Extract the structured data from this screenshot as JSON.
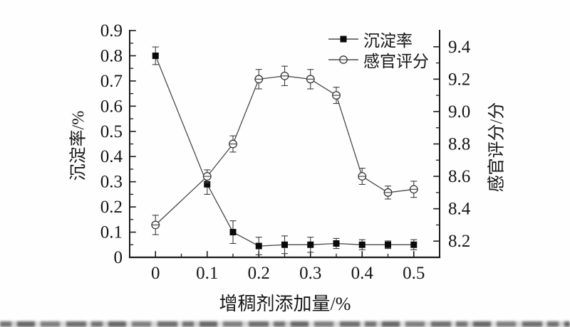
{
  "chart_data": {
    "type": "line",
    "title": "",
    "xlabel": "增稠剂添加量/%",
    "ylabel_left": "沉淀率/%",
    "ylabel_right": "感官评分/分",
    "legend_position": "top-right-inside",
    "grid": false,
    "x": [
      0,
      0.1,
      0.15,
      0.2,
      0.25,
      0.3,
      0.35,
      0.4,
      0.45,
      0.5
    ],
    "series": [
      {
        "name": "沉淀率",
        "axis": "left",
        "marker": "filled-square",
        "values": [
          0.8,
          0.29,
          0.1,
          0.045,
          0.05,
          0.05,
          0.055,
          0.05,
          0.05,
          0.05
        ],
        "errors": [
          0.035,
          0.04,
          0.045,
          0.035,
          0.035,
          0.03,
          0.02,
          0.02,
          0.015,
          0.02
        ]
      },
      {
        "name": "感官评分",
        "axis": "right",
        "marker": "open-circle",
        "values": [
          8.3,
          8.6,
          8.8,
          9.2,
          9.22,
          9.2,
          9.1,
          8.6,
          8.5,
          8.52
        ],
        "errors": [
          0.06,
          0.04,
          0.05,
          0.06,
          0.06,
          0.06,
          0.05,
          0.05,
          0.04,
          0.05
        ]
      }
    ],
    "x_range": [
      -0.05,
      0.55
    ],
    "x_ticks": [
      0,
      0.1,
      0.2,
      0.3,
      0.4,
      0.5
    ],
    "x_tick_labels": [
      "0",
      "0.1",
      "0.2",
      "0.3",
      "0.4",
      "0.5"
    ],
    "x_minor_ticks": [
      0.05,
      0.15,
      0.25,
      0.35,
      0.45
    ],
    "y_left_range": [
      0,
      0.9
    ],
    "y_left_ticks": [
      0,
      0.1,
      0.2,
      0.3,
      0.4,
      0.5,
      0.6,
      0.7,
      0.8,
      0.9
    ],
    "y_left_tick_labels": [
      "0",
      "0.1",
      "0.2",
      "0.3",
      "0.4",
      "0.5",
      "0.6",
      "0.7",
      "0.8",
      "0.9"
    ],
    "y_left_minor_ticks": [
      0.05,
      0.15,
      0.25,
      0.35,
      0.45,
      0.55,
      0.65,
      0.75,
      0.85
    ],
    "y_right_range": [
      8.1,
      9.5
    ],
    "y_right_ticks": [
      8.2,
      8.4,
      8.6,
      8.8,
      9.0,
      9.2,
      9.4
    ],
    "y_right_tick_labels": [
      "8.2",
      "8.4",
      "8.6",
      "8.8",
      "9.0",
      "9.2",
      "9.4"
    ],
    "y_right_minor_ticks": [
      8.3,
      8.5,
      8.7,
      8.9,
      9.1,
      9.3
    ],
    "colors": {
      "axis": "#1a1a1a",
      "line": "#4a4a4a",
      "error_bar": "#3d3d3d",
      "square_marker": "#0a0a0a",
      "circle_stroke": "#3a3a3a",
      "circle_fill": "#fcfcfc",
      "text": "#161616"
    }
  }
}
